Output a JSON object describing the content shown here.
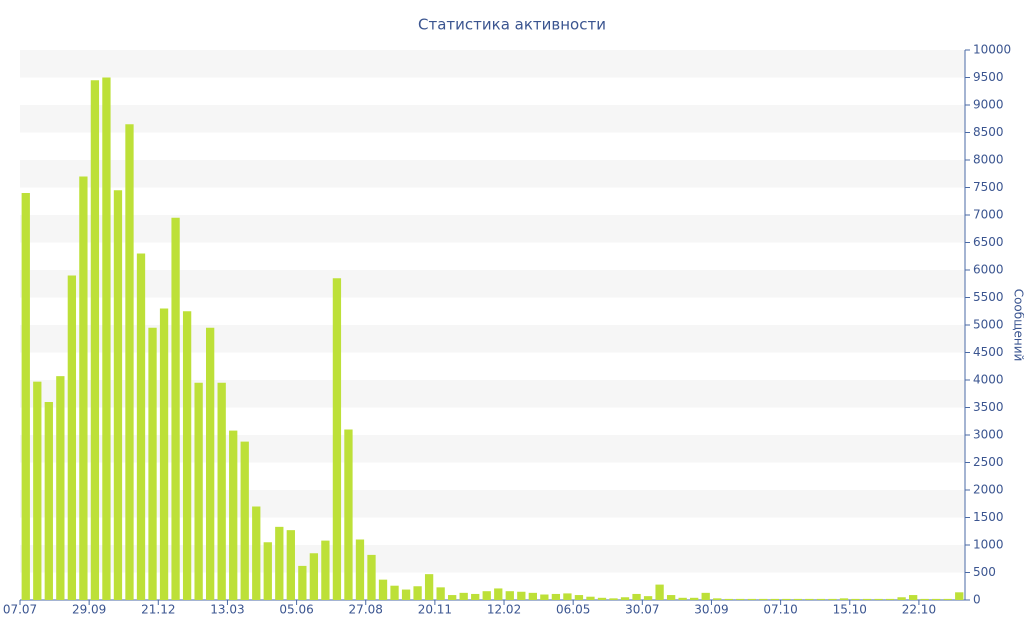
{
  "chart_data": {
    "type": "bar",
    "title": "Статистика активности",
    "y_label": "Сообщений",
    "categories": [
      "07.07",
      null,
      null,
      null,
      null,
      null,
      "29.09",
      null,
      null,
      null,
      null,
      null,
      "21.12",
      null,
      null,
      null,
      null,
      null,
      "13.03",
      null,
      null,
      null,
      null,
      null,
      "05.06",
      null,
      null,
      null,
      null,
      null,
      "27.08",
      null,
      null,
      null,
      null,
      null,
      "20.11",
      null,
      null,
      null,
      null,
      null,
      "12.02",
      null,
      null,
      null,
      null,
      null,
      "06.05",
      null,
      null,
      null,
      null,
      null,
      "30.07",
      null,
      null,
      null,
      null,
      null,
      "30.09",
      null,
      null,
      null,
      null,
      null,
      "07.10",
      null,
      null,
      null,
      null,
      null,
      "15.10",
      null,
      null,
      null,
      null,
      null,
      "22.10",
      null,
      null,
      null
    ],
    "values": [
      7400,
      3970,
      3600,
      4070,
      5900,
      7700,
      9450,
      9500,
      7450,
      8650,
      6300,
      4950,
      5300,
      6950,
      5250,
      3950,
      4950,
      3950,
      3080,
      2880,
      1700,
      1050,
      1330,
      1270,
      620,
      850,
      1080,
      5850,
      3100,
      1100,
      820,
      370,
      260,
      190,
      250,
      470,
      230,
      90,
      130,
      110,
      160,
      210,
      160,
      150,
      130,
      100,
      110,
      120,
      90,
      60,
      40,
      30,
      50,
      110,
      70,
      280,
      90,
      40,
      40,
      130,
      30,
      20,
      20,
      20,
      20,
      20,
      20,
      20,
      20,
      20,
      20,
      30,
      20,
      20,
      20,
      20,
      50,
      90,
      20,
      20,
      20,
      140
    ],
    "color": "#bde038",
    "ylim": [
      0,
      10000
    ],
    "yticks": [
      0,
      500,
      1000,
      1500,
      2000,
      2500,
      3000,
      3500,
      4000,
      4500,
      5000,
      5500,
      6000,
      6500,
      7000,
      7500,
      8000,
      8500,
      9000,
      9500,
      10000
    ],
    "y_axis_side": "right",
    "grid": "bands"
  }
}
